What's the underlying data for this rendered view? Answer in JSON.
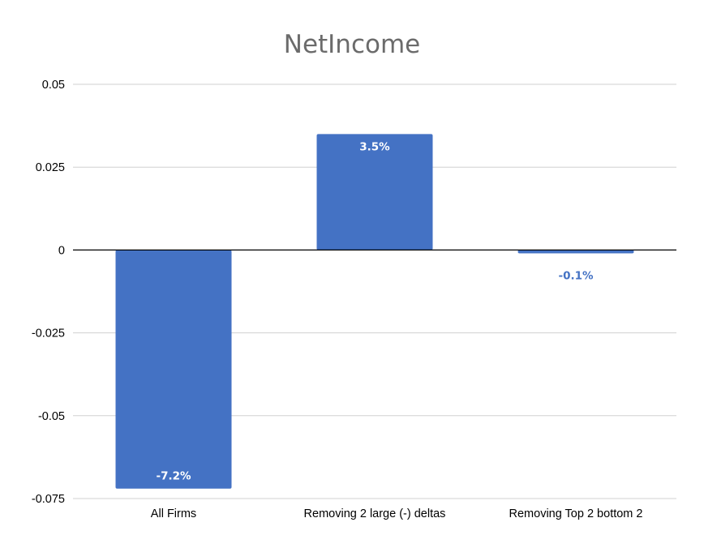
{
  "chart_data": {
    "type": "bar",
    "title": "NetIncome",
    "xlabel": "",
    "ylabel": "",
    "categories": [
      "All Firms",
      "Removing 2 large (-) deltas",
      "Removing Top 2 bottom 2"
    ],
    "values": [
      -0.072,
      0.035,
      -0.001
    ],
    "data_labels": [
      "-7.2%",
      "3.5%",
      "-0.1%"
    ],
    "yticks": [
      "0.05",
      "0.025",
      "0",
      "-0.025",
      "-0.05",
      "-0.075"
    ],
    "ytick_values": [
      0.05,
      0.025,
      0,
      -0.025,
      -0.05,
      -0.075
    ],
    "ylim": [
      -0.075,
      0.05
    ],
    "grid": true,
    "legend": "none",
    "bar_color": "#4472c4",
    "inside_label_color": "#ffffff",
    "outside_label_color": "#4472c4"
  }
}
